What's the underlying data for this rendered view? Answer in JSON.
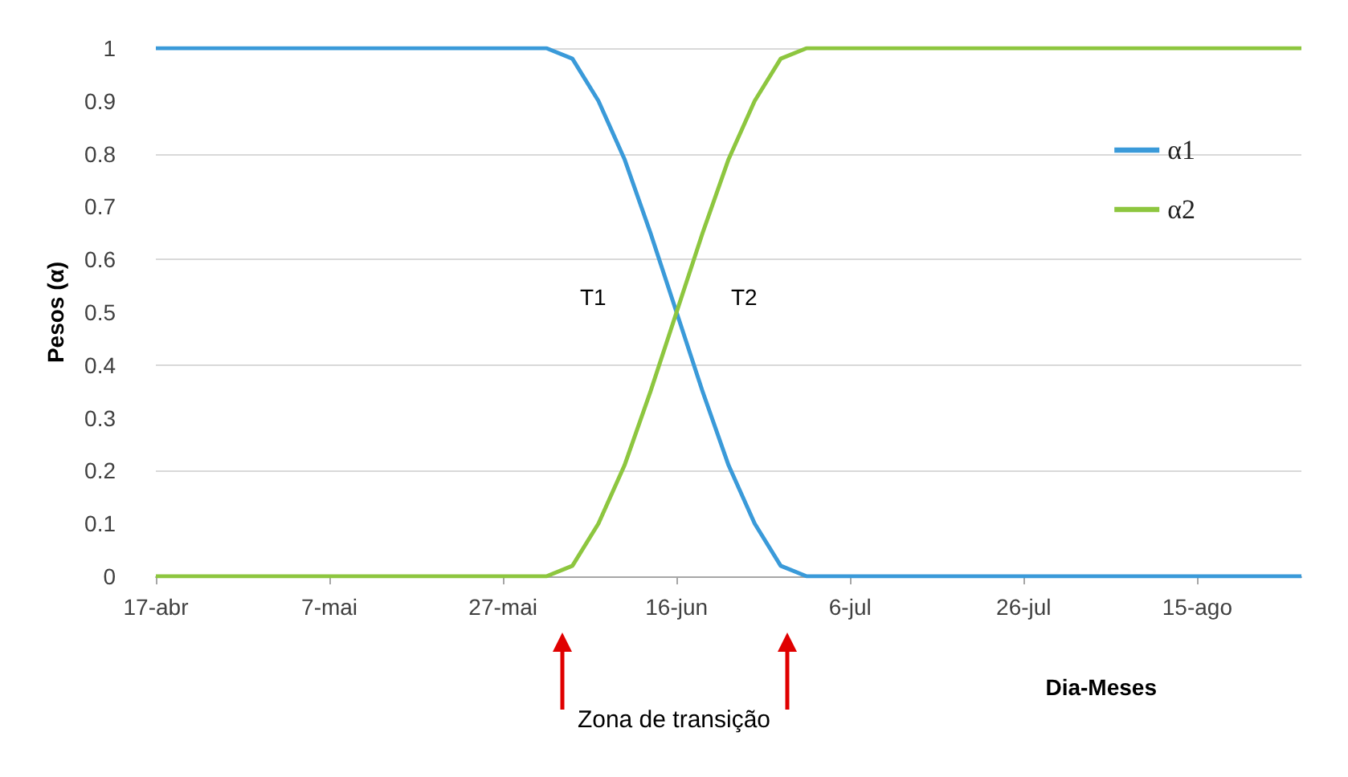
{
  "chart_data": {
    "type": "line",
    "xlabel": "Dia-Meses",
    "ylabel": "Pesos (α)",
    "x": [
      "--04-17",
      "--06-01",
      "--06-04",
      "--06-07",
      "--06-10",
      "--06-13",
      "--06-16",
      "--06-19",
      "--06-22",
      "--06-25",
      "--06-28",
      "--07-01",
      "--08-27"
    ],
    "series": [
      {
        "name": "α1",
        "color": "#3a9ad9",
        "values": [
          1,
          1,
          0.98,
          0.9,
          0.79,
          0.65,
          0.5,
          0.35,
          0.21,
          0.1,
          0.02,
          0,
          0
        ]
      },
      {
        "name": "α2",
        "color": "#8dc63f",
        "values": [
          0,
          0,
          0.02,
          0.1,
          0.21,
          0.35,
          0.5,
          0.65,
          0.79,
          0.9,
          0.98,
          1,
          1
        ]
      }
    ],
    "xlim": [
      "--04-17",
      "--08-27"
    ],
    "xticks": [
      {
        "value": "--04-17",
        "label": "17-abr"
      },
      {
        "value": "--05-07",
        "label": "7-mai"
      },
      {
        "value": "--05-27",
        "label": "27-mai"
      },
      {
        "value": "--06-16",
        "label": "16-jun"
      },
      {
        "value": "--07-06",
        "label": "6-jul"
      },
      {
        "value": "--07-26",
        "label": "26-jul"
      },
      {
        "value": "--08-15",
        "label": "15-ago"
      }
    ],
    "ylim": [
      0,
      1
    ],
    "yticks": [
      0,
      0.1,
      0.2,
      0.3,
      0.4,
      0.5,
      0.6,
      0.7,
      0.8,
      0.9,
      1
    ],
    "annotations": [
      "T1",
      "T2",
      "Zona de transição"
    ],
    "grid": "y",
    "legend": "top right",
    "marker": "none",
    "line_style": "solid"
  }
}
